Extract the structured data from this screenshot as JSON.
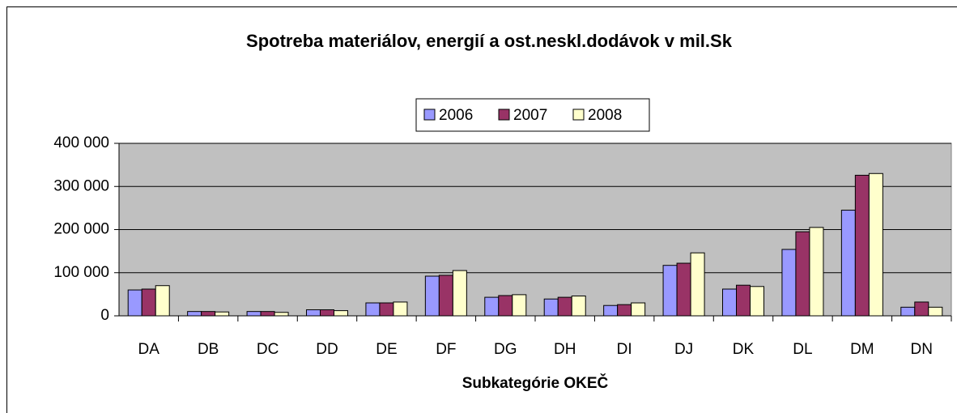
{
  "chart_data": {
    "type": "bar",
    "title": "Spotreba materiálov, energií a ost.neskl.dodávok v mil.Sk",
    "x_label": "Subkategórie OKEČ",
    "categories": [
      "DA",
      "DB",
      "DC",
      "DD",
      "DE",
      "DF",
      "DG",
      "DH",
      "DI",
      "DJ",
      "DK",
      "DL",
      "DM",
      "DN"
    ],
    "series": [
      {
        "name": "2006",
        "color": "#9999ff",
        "values": [
          60000,
          10000,
          10000,
          14000,
          30000,
          92000,
          43000,
          39000,
          24000,
          117000,
          62000,
          154000,
          245000,
          20000
        ]
      },
      {
        "name": "2007",
        "color": "#993366",
        "values": [
          62000,
          10000,
          10000,
          14000,
          30000,
          94000,
          47000,
          43000,
          26000,
          122000,
          71000,
          195000,
          326000,
          32000
        ]
      },
      {
        "name": "2008",
        "color": "#ffffcc",
        "values": [
          70000,
          9000,
          8000,
          12000,
          32000,
          105000,
          49000,
          46000,
          30000,
          146000,
          68000,
          205000,
          330000,
          20000
        ]
      }
    ],
    "ylim": [
      0,
      400000
    ],
    "yticks": [
      {
        "value": 0,
        "label": "0"
      },
      {
        "value": 100000,
        "label": "100 000"
      },
      {
        "value": 200000,
        "label": "200 000"
      },
      {
        "value": 300000,
        "label": "300 000"
      },
      {
        "value": 400000,
        "label": "400 000"
      }
    ],
    "grid": true,
    "legend": "top",
    "plot_background": "#c0c0c0"
  }
}
